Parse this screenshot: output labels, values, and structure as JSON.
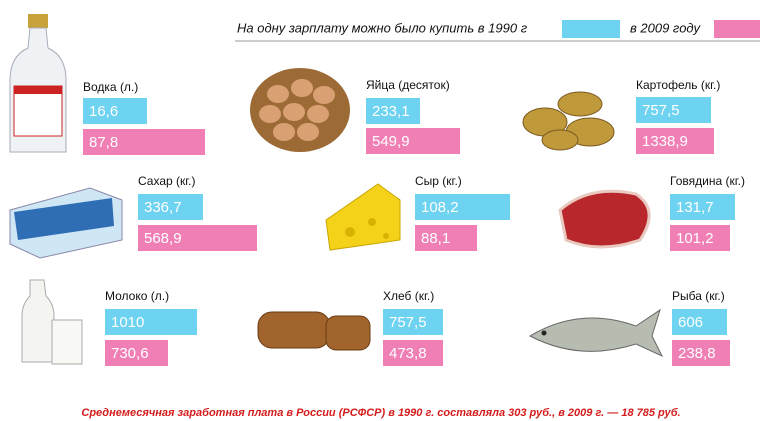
{
  "header": {
    "title": "На одну зарплату можно было купить в 1990 г",
    "legend_2009": "в 2009 году"
  },
  "items": [
    {
      "name": "Водка (л.)",
      "v1990": "16,6",
      "v2009": "87,8"
    },
    {
      "name": "Яйца (десяток)",
      "v1990": "233,1",
      "v2009": "549,9"
    },
    {
      "name": "Картофель (кг.)",
      "v1990": "757,5",
      "v2009": "1338,9"
    },
    {
      "name": "Сахар (кг.)",
      "v1990": "336,7",
      "v2009": "568,9"
    },
    {
      "name": "Сыр (кг.)",
      "v1990": "108,2",
      "v2009": "88,1"
    },
    {
      "name": "Говядина (кг.)",
      "v1990": "131,7",
      "v2009": "101,2"
    },
    {
      "name": "Молоко (л.)",
      "v1990": "1010",
      "v2009": "730,6"
    },
    {
      "name": "Хлеб (кг.)",
      "v1990": "757,5",
      "v2009": "473,8"
    },
    {
      "name": "Рыба (кг.)",
      "v1990": "606",
      "v2009": "238,8"
    }
  ],
  "footer": "Среднемесячная заработная плата в России (РСФСР) в 1990 г. составляла 303 руб., в 2009 г. — 18 785 руб."
}
